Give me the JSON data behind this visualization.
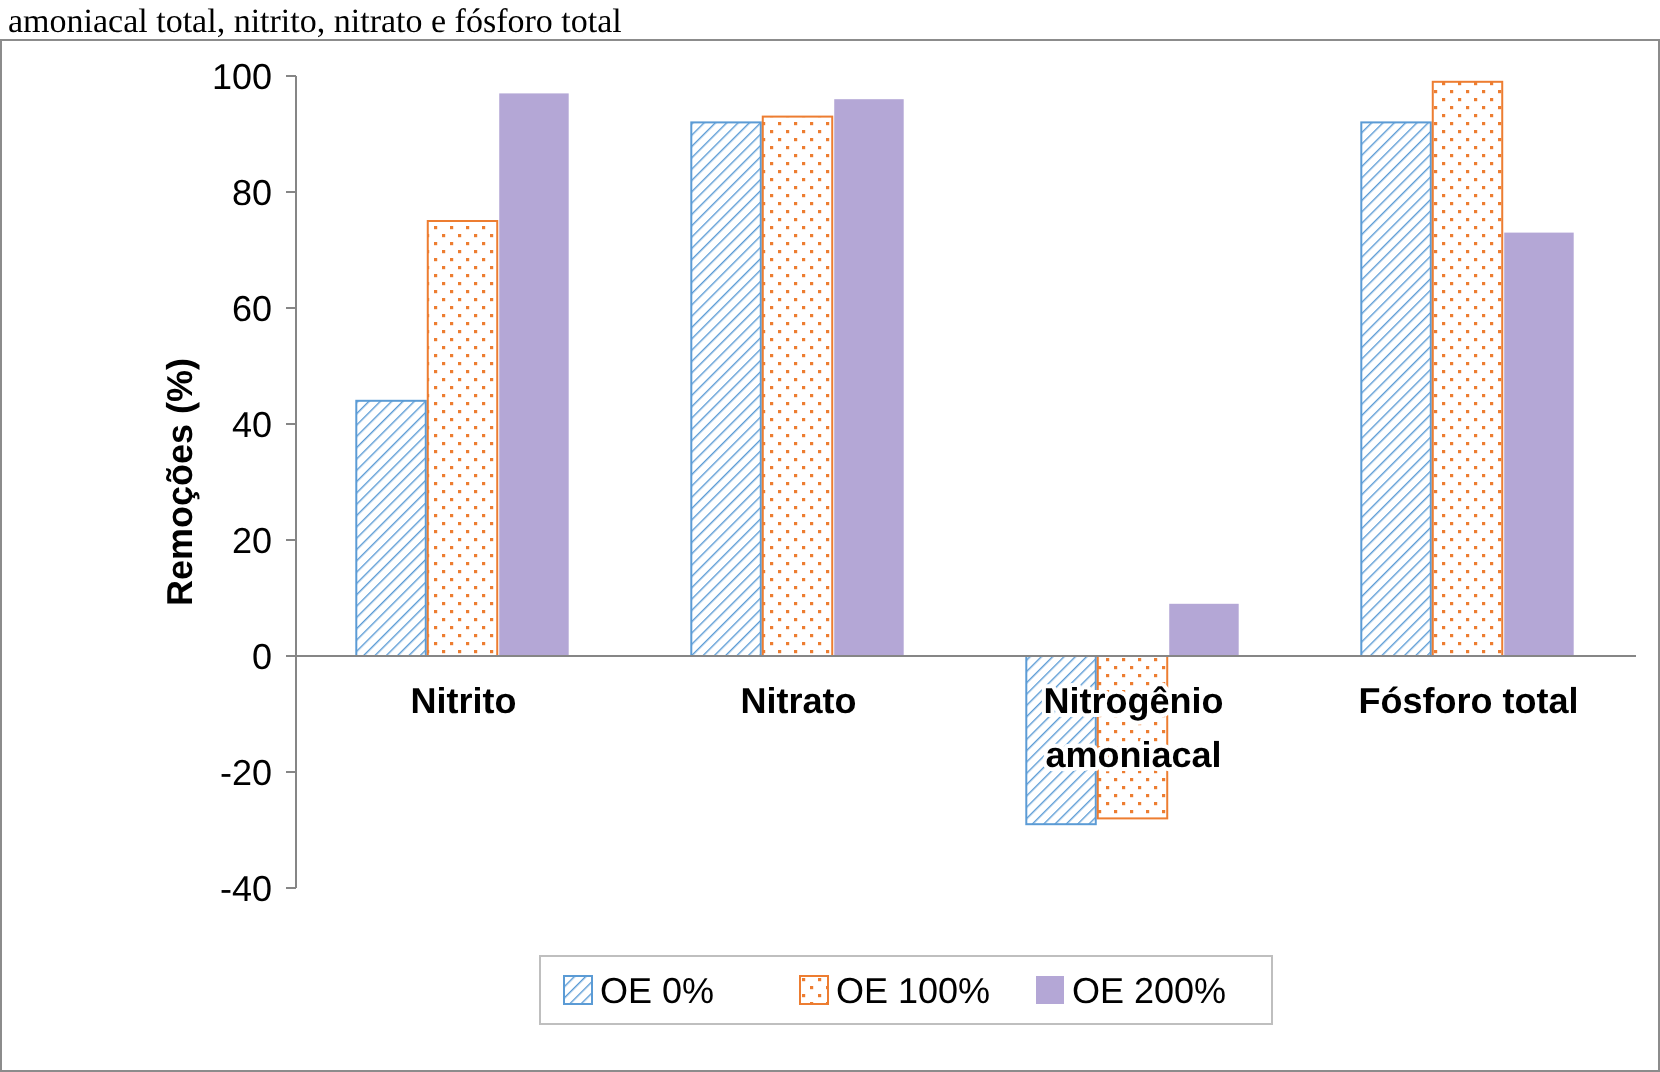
{
  "chart_data": {
    "type": "bar",
    "title": "amoniacal total, nitrito, nitrato e fósforo total",
    "ylabel": "Remoções (%)",
    "categories": [
      "Nitrito",
      "Nitrato",
      "Nitrogênio amoniacal",
      "Fósforo total"
    ],
    "series": [
      {
        "name": "OE 0%",
        "color": "#5b9bd5",
        "values": [
          44,
          92,
          -29,
          92
        ]
      },
      {
        "name": "OE 100%",
        "color": "#ed7d31",
        "values": [
          75,
          93,
          -28,
          99
        ]
      },
      {
        "name": "OE 200%",
        "color": "#b4a7d6",
        "values": [
          97,
          96,
          9,
          73
        ]
      }
    ],
    "ylim": [
      -40,
      100
    ],
    "yticks": [
      -40,
      -20,
      0,
      20,
      40,
      60,
      80,
      100
    ],
    "grid": false,
    "legend": "bottom"
  }
}
